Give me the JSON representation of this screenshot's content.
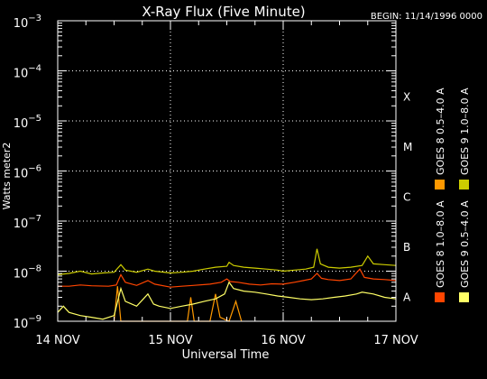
{
  "chart_data": {
    "type": "line",
    "title": "X-Ray Flux (Five Minute)",
    "begin_label": "BEGIN: 11/14/1996 0000",
    "xlabel": "Universal Time",
    "ylabel": "Watts meter2",
    "y_scale": "log",
    "ylim": [
      1e-09,
      0.001
    ],
    "xlim": [
      0,
      3
    ],
    "x_unit": "days since 14 NOV 1996 00:00 UT",
    "x_ticks": [
      {
        "x": 0,
        "label": "14 NOV"
      },
      {
        "x": 1,
        "label": "15 NOV"
      },
      {
        "x": 2,
        "label": "16 NOV"
      },
      {
        "x": 3,
        "label": "17 NOV"
      }
    ],
    "y_ticks": [
      {
        "exp": -3,
        "base": "10",
        "sup": "−3"
      },
      {
        "exp": -4,
        "base": "10",
        "sup": "−4"
      },
      {
        "exp": -5,
        "base": "10",
        "sup": "−5"
      },
      {
        "exp": -6,
        "base": "10",
        "sup": "−6"
      },
      {
        "exp": -7,
        "base": "10",
        "sup": "−7"
      },
      {
        "exp": -8,
        "base": "10",
        "sup": "−8"
      },
      {
        "exp": -9,
        "base": "10",
        "sup": "−9"
      }
    ],
    "flare_classes": [
      {
        "label": "X",
        "exp": -4
      },
      {
        "label": "M",
        "exp": -5
      },
      {
        "label": "C",
        "exp": -6
      },
      {
        "label": "B",
        "exp": -7
      },
      {
        "label": "A",
        "exp": -8
      }
    ],
    "grid": {
      "vertical_dotted_at": [
        1,
        2
      ],
      "horizontal_dotted_at_exp": [
        -4,
        -5,
        -6,
        -7,
        -8
      ]
    },
    "legend_placement": "right, rotated vertical",
    "series": [
      {
        "name": "GOES 8 1.0–8.0 A",
        "color": "#ff4500",
        "points": [
          [
            0,
            5e-09
          ],
          [
            0.1,
            5e-09
          ],
          [
            0.2,
            5.3e-09
          ],
          [
            0.3,
            5.1e-09
          ],
          [
            0.45,
            5e-09
          ],
          [
            0.52,
            5.3e-09
          ],
          [
            0.56,
            8.5e-09
          ],
          [
            0.6,
            6e-09
          ],
          [
            0.7,
            5.2e-09
          ],
          [
            0.8,
            6.5e-09
          ],
          [
            0.86,
            5.5e-09
          ],
          [
            1.0,
            4.8e-09
          ],
          [
            1.1,
            5e-09
          ],
          [
            1.2,
            5.2e-09
          ],
          [
            1.35,
            5.5e-09
          ],
          [
            1.45,
            6e-09
          ],
          [
            1.5,
            7e-09
          ],
          [
            1.53,
            6.2e-09
          ],
          [
            1.6,
            6e-09
          ],
          [
            1.7,
            5.5e-09
          ],
          [
            1.8,
            5.3e-09
          ],
          [
            1.9,
            5.6e-09
          ],
          [
            2.0,
            5.5e-09
          ],
          [
            2.1,
            6e-09
          ],
          [
            2.18,
            6.5e-09
          ],
          [
            2.25,
            7e-09
          ],
          [
            2.3,
            9e-09
          ],
          [
            2.34,
            7.2e-09
          ],
          [
            2.4,
            6.8e-09
          ],
          [
            2.5,
            6.5e-09
          ],
          [
            2.6,
            7e-09
          ],
          [
            2.68,
            1.1e-08
          ],
          [
            2.72,
            7.5e-09
          ],
          [
            2.8,
            7e-09
          ],
          [
            2.9,
            6.8e-09
          ],
          [
            3.0,
            6.5e-09
          ]
        ]
      },
      {
        "name": "GOES 8 0.5–4.0 A",
        "color": "#ff9900",
        "points": [
          [
            0.5,
            1e-09
          ],
          [
            0.53,
            5e-09
          ],
          [
            0.56,
            1e-09
          ],
          [
            1.15,
            1e-09
          ],
          [
            1.18,
            3e-09
          ],
          [
            1.21,
            1e-09
          ],
          [
            1.35,
            1e-09
          ],
          [
            1.4,
            3.5e-09
          ],
          [
            1.44,
            1.2e-09
          ],
          [
            1.52,
            1e-09
          ],
          [
            1.58,
            2.5e-09
          ],
          [
            1.63,
            1e-09
          ]
        ]
      },
      {
        "name": "GOES 9 0.5–4.0 A",
        "color": "#ffff66",
        "points": [
          [
            0,
            1.5e-09
          ],
          [
            0.05,
            2e-09
          ],
          [
            0.1,
            1.5e-09
          ],
          [
            0.2,
            1.3e-09
          ],
          [
            0.3,
            1.2e-09
          ],
          [
            0.4,
            1.1e-09
          ],
          [
            0.5,
            1.3e-09
          ],
          [
            0.56,
            4.5e-09
          ],
          [
            0.6,
            2.5e-09
          ],
          [
            0.7,
            2e-09
          ],
          [
            0.8,
            3.5e-09
          ],
          [
            0.85,
            2.2e-09
          ],
          [
            0.9,
            2e-09
          ],
          [
            1.0,
            1.8e-09
          ],
          [
            1.1,
            2e-09
          ],
          [
            1.2,
            2.2e-09
          ],
          [
            1.3,
            2.5e-09
          ],
          [
            1.4,
            2.8e-09
          ],
          [
            1.48,
            3.5e-09
          ],
          [
            1.52,
            6e-09
          ],
          [
            1.56,
            4.5e-09
          ],
          [
            1.65,
            4e-09
          ],
          [
            1.75,
            3.8e-09
          ],
          [
            1.85,
            3.5e-09
          ],
          [
            1.95,
            3.2e-09
          ],
          [
            2.05,
            3e-09
          ],
          [
            2.15,
            2.8e-09
          ],
          [
            2.25,
            2.7e-09
          ],
          [
            2.35,
            2.8e-09
          ],
          [
            2.45,
            3e-09
          ],
          [
            2.55,
            3.2e-09
          ],
          [
            2.65,
            3.5e-09
          ],
          [
            2.7,
            3.8e-09
          ],
          [
            2.8,
            3.5e-09
          ],
          [
            2.9,
            3e-09
          ],
          [
            3.0,
            2.8e-09
          ]
        ]
      },
      {
        "name": "GOES 9 1.0–8.0 A",
        "color": "#cccc00",
        "points": [
          [
            0,
            8.5e-09
          ],
          [
            0.1,
            9e-09
          ],
          [
            0.2,
            1e-08
          ],
          [
            0.3,
            8.8e-09
          ],
          [
            0.4,
            9.2e-09
          ],
          [
            0.5,
            9.5e-09
          ],
          [
            0.56,
            1.35e-08
          ],
          [
            0.6,
            1.05e-08
          ],
          [
            0.7,
            9.5e-09
          ],
          [
            0.8,
            1.1e-08
          ],
          [
            0.86,
            1e-08
          ],
          [
            1.0,
            9.2e-09
          ],
          [
            1.1,
            9.5e-09
          ],
          [
            1.2,
            1e-08
          ],
          [
            1.3,
            1.1e-08
          ],
          [
            1.4,
            1.2e-08
          ],
          [
            1.5,
            1.25e-08
          ],
          [
            1.52,
            1.5e-08
          ],
          [
            1.56,
            1.3e-08
          ],
          [
            1.65,
            1.2e-08
          ],
          [
            1.75,
            1.15e-08
          ],
          [
            1.85,
            1.1e-08
          ],
          [
            1.95,
            1.05e-08
          ],
          [
            2.0,
            1e-08
          ],
          [
            2.1,
            1.05e-08
          ],
          [
            2.2,
            1.1e-08
          ],
          [
            2.27,
            1.2e-08
          ],
          [
            2.3,
            2.8e-08
          ],
          [
            2.33,
            1.4e-08
          ],
          [
            2.4,
            1.2e-08
          ],
          [
            2.5,
            1.15e-08
          ],
          [
            2.6,
            1.2e-08
          ],
          [
            2.7,
            1.3e-08
          ],
          [
            2.75,
            2e-08
          ],
          [
            2.8,
            1.4e-08
          ],
          [
            2.9,
            1.35e-08
          ],
          [
            3.0,
            1.3e-08
          ]
        ]
      }
    ]
  }
}
